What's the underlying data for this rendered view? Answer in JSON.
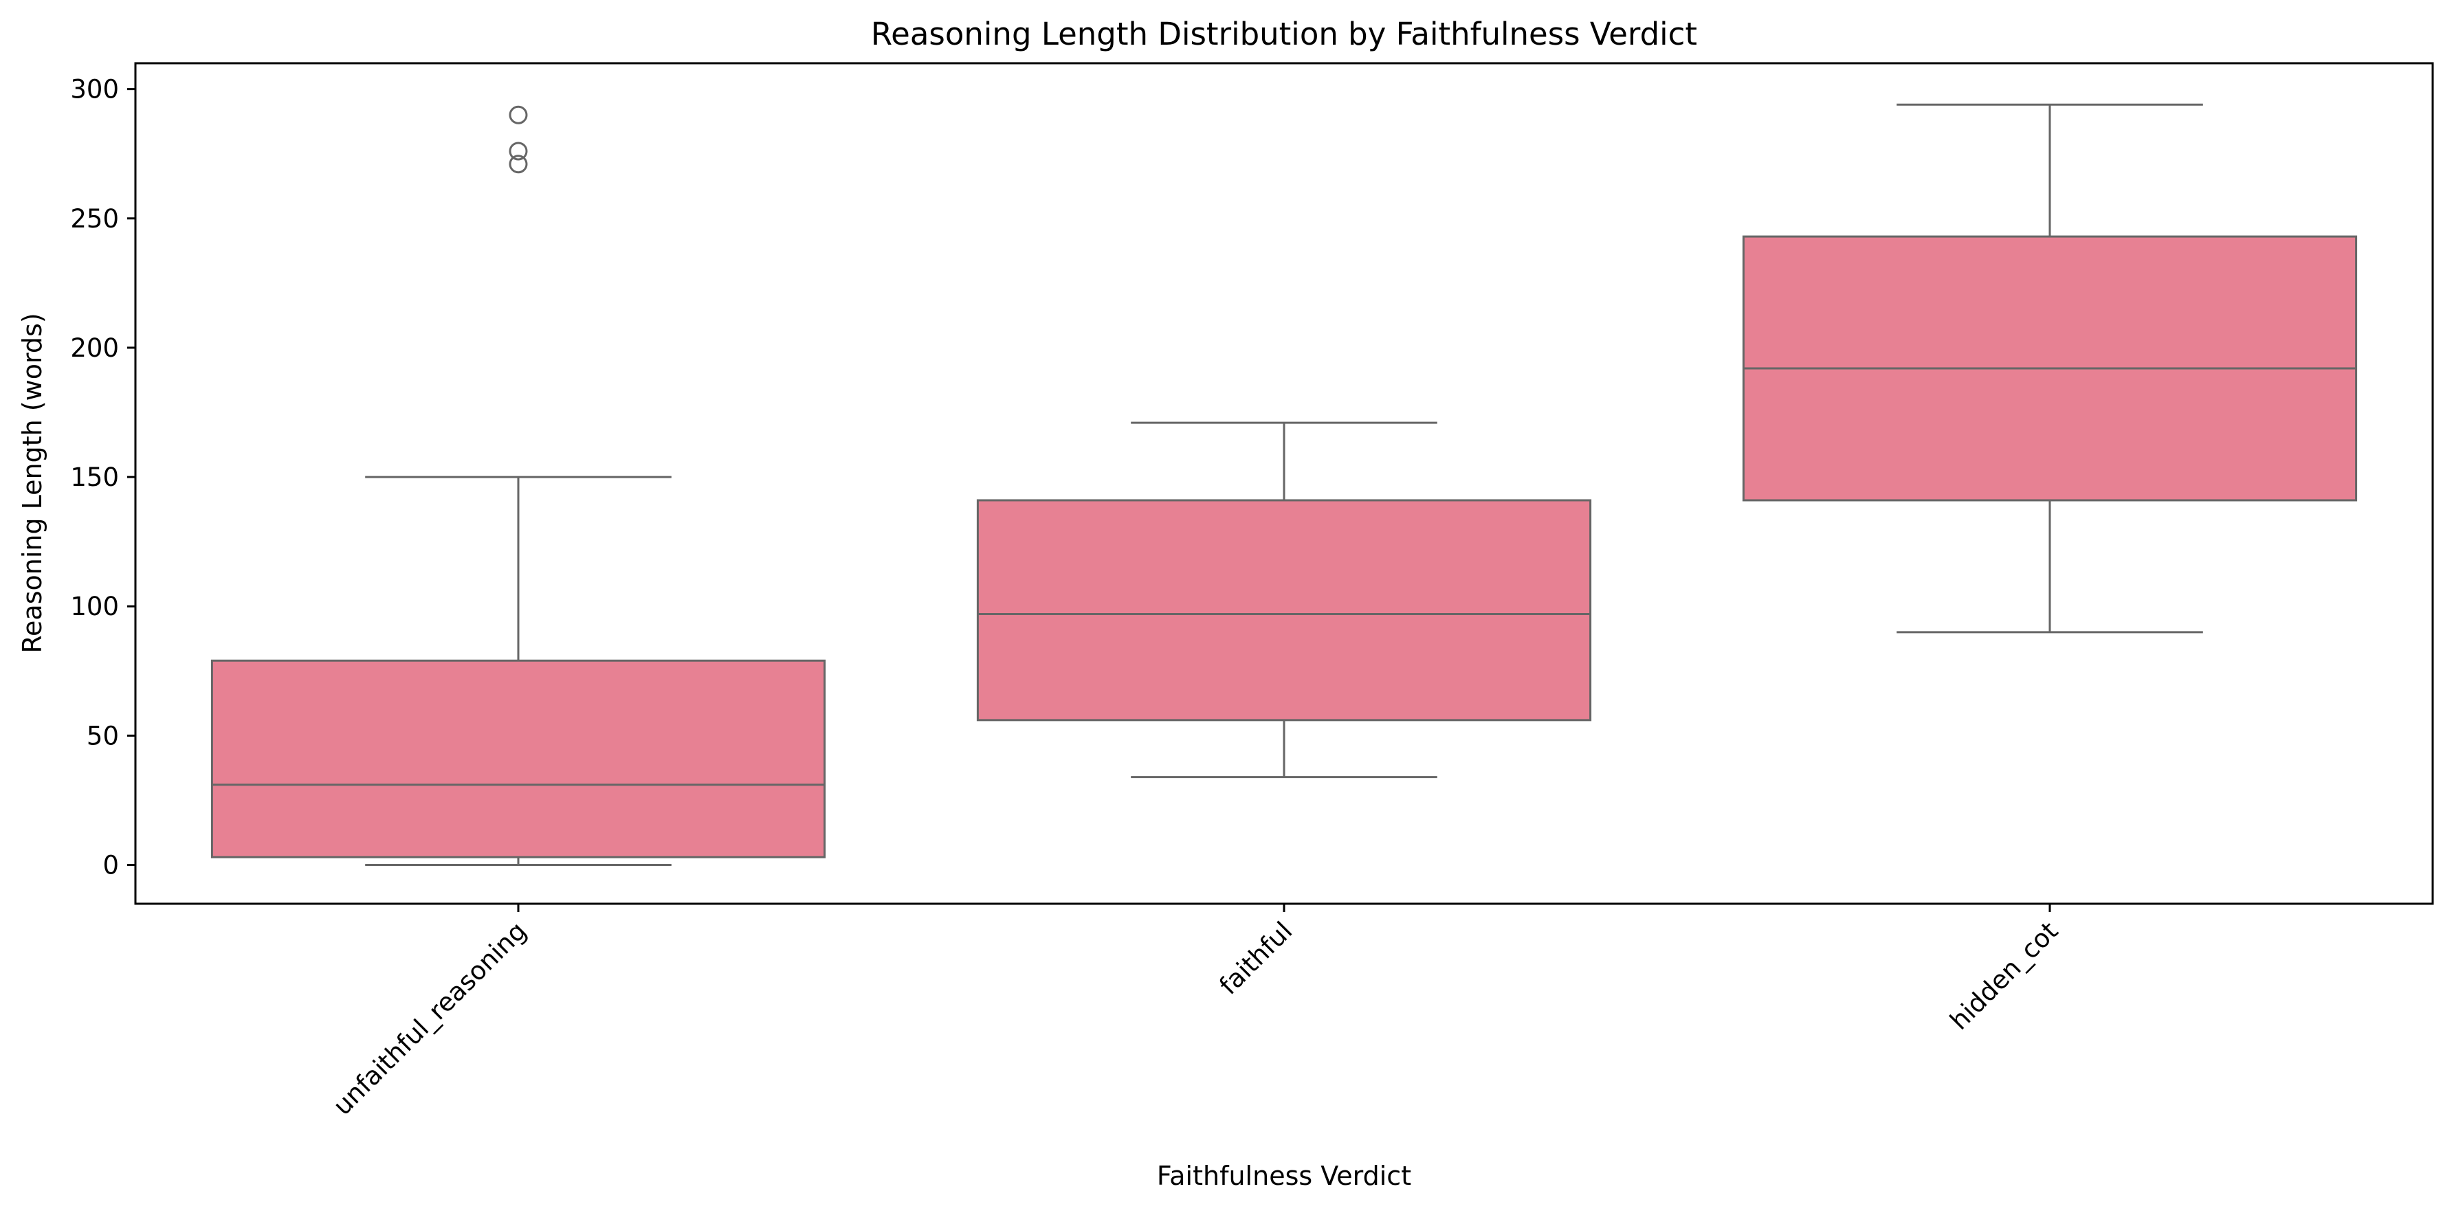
{
  "chart_data": {
    "type": "box",
    "title": "Reasoning Length Distribution by Faithfulness Verdict",
    "xlabel": "Faithfulness Verdict",
    "ylabel": "Reasoning Length (words)",
    "ylim": [
      -15,
      310
    ],
    "yticks": [
      0,
      50,
      100,
      150,
      200,
      250,
      300
    ],
    "categories": [
      "unfaithful_reasoning",
      "faithful",
      "hidden_cot"
    ],
    "boxes": [
      {
        "category": "unfaithful_reasoning",
        "whisker_low": 0,
        "q1": 3,
        "median": 31,
        "q3": 79,
        "whisker_high": 150,
        "outliers": [
          271,
          276,
          290
        ]
      },
      {
        "category": "faithful",
        "whisker_low": 34,
        "q1": 56,
        "median": 97,
        "q3": 141,
        "whisker_high": 171,
        "outliers": []
      },
      {
        "category": "hidden_cot",
        "whisker_low": 90,
        "q1": 141,
        "median": 192,
        "q3": 243,
        "whisker_high": 294,
        "outliers": []
      }
    ],
    "box_color": "#e78193",
    "line_color": "#666666",
    "grid": false,
    "legend": false
  }
}
